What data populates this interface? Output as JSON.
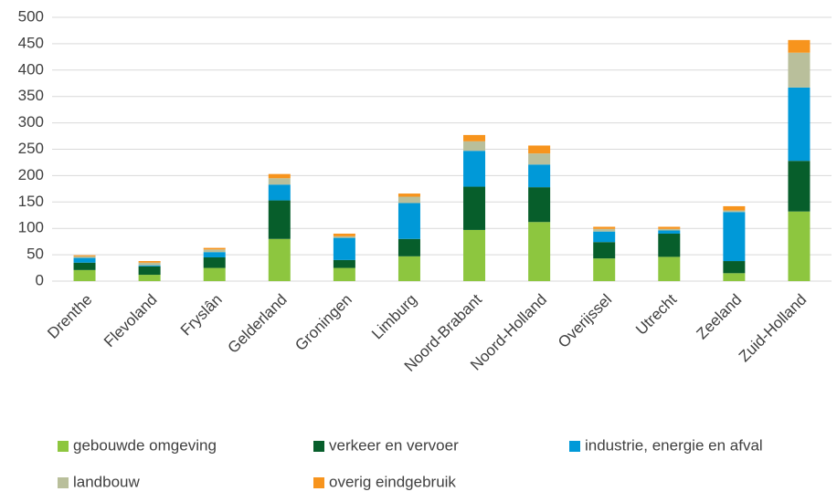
{
  "chart_data": {
    "type": "stacked_bar",
    "categories": [
      "Drenthe",
      "Flevoland",
      "Fryslân",
      "Gelderland",
      "Groningen",
      "Limburg",
      "Noord-Brabant",
      "Noord-Holland",
      "Overijssel",
      "Utrecht",
      "Zeeland",
      "Zuid-Holland"
    ],
    "series": [
      {
        "name": "gebouwde omgeving",
        "color": "#8dc63f",
        "values": [
          21,
          12,
          25,
          80,
          25,
          47,
          97,
          112,
          43,
          46,
          15,
          132
        ]
      },
      {
        "name": "verkeer en vervoer",
        "color": "#075e2b",
        "values": [
          14,
          16,
          20,
          73,
          15,
          33,
          82,
          66,
          31,
          44,
          23,
          96
        ]
      },
      {
        "name": "industrie, energie en afval",
        "color": "#0099d8",
        "values": [
          9,
          2,
          10,
          30,
          42,
          68,
          68,
          43,
          20,
          6,
          93,
          139
        ]
      },
      {
        "name": "landbouw",
        "color": "#b9bf9b",
        "values": [
          3,
          5,
          5,
          12,
          3,
          12,
          18,
          21,
          5,
          3,
          3,
          66
        ]
      },
      {
        "name": "overig eindgebruik",
        "color": "#f7941d",
        "values": [
          2,
          3,
          3,
          8,
          5,
          6,
          12,
          15,
          4,
          4,
          8,
          24
        ]
      }
    ],
    "ylim": [
      0,
      500
    ],
    "yticks": [
      0,
      50,
      100,
      150,
      200,
      250,
      300,
      350,
      400,
      450,
      500
    ],
    "grid": true,
    "legend": "bottom"
  }
}
